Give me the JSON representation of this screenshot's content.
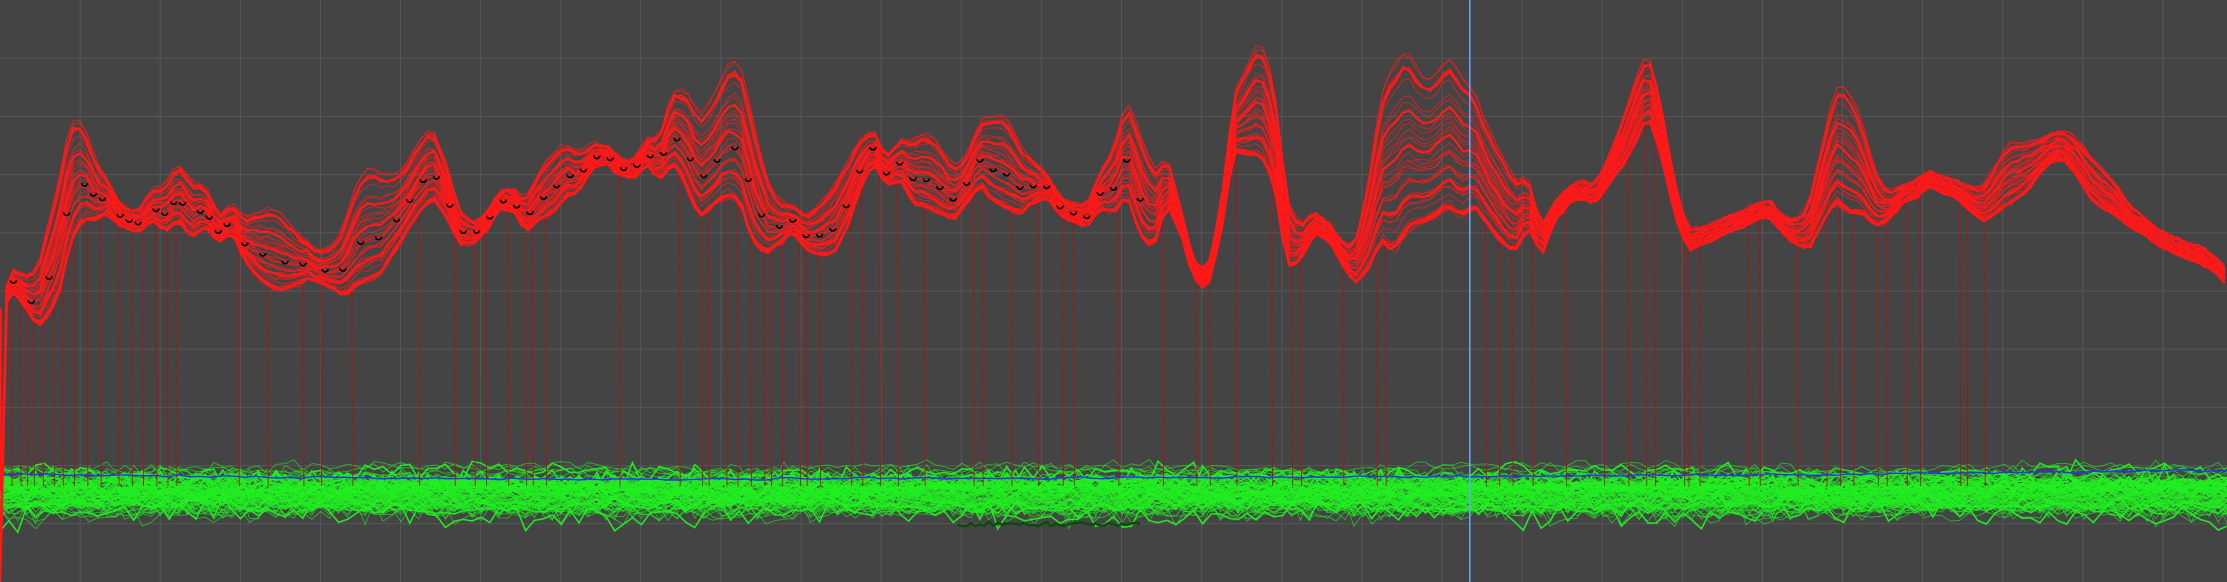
{
  "chart_data": {
    "type": "line",
    "title": "",
    "xlabel": "",
    "ylabel": "",
    "grid": true,
    "xlim": [
      0,
      1000
    ],
    "ylim": [
      0,
      100
    ],
    "cursor_x": 660,
    "colors": {
      "background": "#444444",
      "grid": "#575757",
      "red_series": "#ff1a1a",
      "red_drop": "#b01010",
      "green_series": "#22ee22",
      "green_dark": "#0a4a0a",
      "blue_series": "#2233ff",
      "cursor": "#6aa6ff",
      "marker": "#000000"
    },
    "red_envelope": {
      "x": [
        0,
        3,
        6,
        10,
        14,
        18,
        22,
        26,
        30,
        34,
        38,
        42,
        48,
        55,
        62,
        68,
        74,
        80,
        86,
        92,
        98,
        104,
        110,
        116,
        122,
        130,
        138,
        146,
        154,
        162,
        170,
        178,
        186,
        194,
        200,
        206,
        212,
        218,
        224,
        230,
        236,
        242,
        248,
        254,
        260,
        266,
        272,
        278,
        284,
        290,
        296,
        302,
        308,
        314,
        320,
        326,
        332,
        338,
        344,
        350,
        356,
        362,
        368,
        374,
        380,
        386,
        392,
        398,
        404,
        410,
        416,
        422,
        428,
        434,
        440,
        446,
        452,
        458,
        464,
        470,
        476,
        482,
        488,
        494,
        500,
        506,
        512,
        518,
        524,
        530,
        536,
        542,
        548,
        554,
        560,
        566,
        572,
        578,
        584,
        590,
        596,
        602,
        608,
        614,
        620,
        626,
        632,
        638,
        644,
        650,
        656,
        662,
        668,
        674,
        680,
        686,
        692,
        698,
        704,
        710,
        716,
        722,
        728,
        734,
        740,
        746,
        752,
        758,
        764,
        770,
        776,
        782,
        788,
        794,
        800,
        806,
        812,
        818,
        824,
        830,
        836,
        842,
        848,
        854,
        860,
        866,
        872,
        878,
        884,
        890,
        896,
        902,
        908,
        914,
        920,
        926,
        932,
        938,
        944,
        950,
        956,
        962,
        968,
        974,
        980,
        986,
        992,
        998,
        1000
      ],
      "base": [
        0,
        48,
        50,
        48,
        45,
        44,
        46,
        48,
        55,
        60,
        62,
        62,
        63,
        61,
        60,
        62,
        60,
        62,
        59,
        61,
        58,
        60,
        55,
        52,
        50,
        50,
        52,
        51,
        49,
        51,
        52,
        57,
        62,
        66,
        63,
        58,
        58,
        60,
        64,
        64,
        60,
        62,
        63,
        66,
        67,
        71,
        72,
        70,
        69,
        72,
        69,
        72,
        68,
        62,
        64,
        66,
        65,
        58,
        56,
        58,
        60,
        57,
        56,
        56,
        60,
        67,
        72,
        68,
        69,
        65,
        64,
        63,
        62,
        65,
        68,
        65,
        64,
        63,
        65,
        66,
        63,
        62,
        61,
        64,
        63,
        66,
        59,
        57,
        65,
        60,
        52,
        50,
        59,
        74,
        73,
        73,
        68,
        54,
        55,
        60,
        59,
        55,
        51,
        53,
        58,
        56,
        60,
        61,
        62,
        64,
        62,
        64,
        61,
        58,
        56,
        61,
        56,
        62,
        65,
        66,
        65,
        68,
        71,
        75,
        80,
        73,
        63,
        57,
        58,
        59,
        60,
        61,
        62,
        63,
        60,
        58,
        57,
        61,
        65,
        63,
        63,
        61,
        62,
        65,
        66,
        68,
        67,
        66,
        64,
        62,
        63,
        65,
        66,
        69,
        72,
        73,
        70,
        66,
        64,
        63,
        61,
        60,
        58,
        57,
        56,
        55,
        54,
        52,
        51
      ],
      "peaks": [
        [
          30,
          20
        ],
        [
          82,
          8
        ],
        [
          123,
          12
        ],
        [
          165,
          18
        ],
        [
          192,
          10
        ],
        [
          249,
          8
        ],
        [
          310,
          14
        ],
        [
          333,
          22
        ],
        [
          377,
          10
        ],
        [
          417,
          11
        ],
        [
          450,
          14
        ],
        [
          510,
          16
        ],
        [
          567,
          18
        ],
        [
          627,
          31
        ],
        [
          652,
          23
        ],
        [
          675,
          12
        ],
        [
          738,
          9
        ],
        [
          828,
          20
        ],
        [
          903,
          8
        ],
        [
          940,
          5
        ]
      ]
    },
    "red_drop_x": [
      5,
      9,
      12,
      15,
      19,
      24,
      28,
      33,
      39,
      45,
      53,
      59,
      64,
      70,
      75,
      79,
      107,
      120,
      136,
      144,
      158,
      188,
      204,
      213,
      218,
      228,
      236,
      239,
      245,
      278,
      305,
      315,
      318,
      326,
      331,
      337,
      343,
      346,
      351,
      359,
      362,
      368,
      382,
      387,
      395,
      403,
      415,
      437,
      441,
      454,
      466,
      477,
      482,
      502,
      522,
      537,
      543,
      555,
      571,
      580,
      584,
      603,
      618,
      622,
      667,
      673,
      679,
      688,
      703,
      720,
      731,
      739,
      743,
      756,
      758,
      763,
      785,
      790,
      807,
      820,
      826,
      832,
      843,
      847,
      856,
      862,
      880,
      883,
      891
    ],
    "black_markers_x": [
      6,
      14,
      22,
      30,
      38,
      42,
      46,
      54,
      58,
      62,
      70,
      74,
      78,
      82,
      90,
      94,
      98,
      102,
      110,
      118,
      128,
      136,
      146,
      154,
      162,
      170,
      178,
      184,
      190,
      196,
      202,
      208,
      214,
      220,
      226,
      232,
      238,
      244,
      250,
      256,
      262,
      268,
      274,
      280,
      286,
      292,
      298,
      304,
      310,
      316,
      322,
      330,
      336,
      342,
      350,
      356,
      362,
      368,
      374,
      380,
      386,
      392,
      398,
      404,
      410,
      416,
      422,
      428,
      434,
      440,
      446,
      452,
      458,
      464,
      470,
      476,
      482,
      488,
      494,
      500,
      506,
      512
    ],
    "green_band": {
      "center": 15.5,
      "spread": 4.2
    },
    "blue_line": [
      [
        0,
        18.5
      ],
      [
        250,
        17.6
      ],
      [
        500,
        17.9
      ],
      [
        700,
        18.2
      ],
      [
        850,
        18.6
      ],
      [
        1000,
        19.2
      ]
    ],
    "green_dark_segment": {
      "x_start": 430,
      "x_end": 512,
      "y": 9.9
    }
  }
}
